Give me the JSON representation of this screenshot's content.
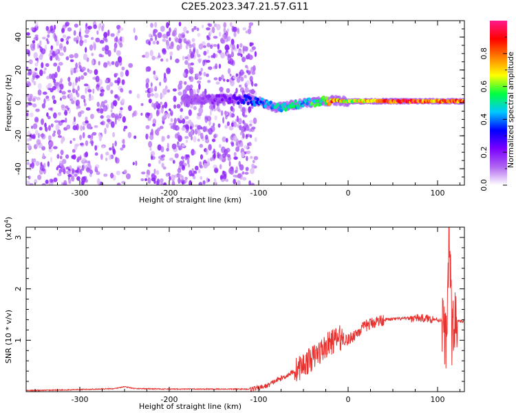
{
  "page": {
    "title": "C2E5.2023.347.21.57.G11"
  },
  "colors": {
    "snr_line": "#e8322f",
    "spectrogram_palette": [
      "#ffffff",
      "#b066f0",
      "#7a00ff",
      "#0000ff",
      "#00c8ff",
      "#00ff40",
      "#ffff00",
      "#ff8000",
      "#ff0000",
      "#ff1a8c"
    ]
  },
  "chart_data": [
    {
      "id": "spectrogram",
      "type": "heatmap",
      "title": "",
      "xlabel": "Height of straight line (km)",
      "ylabel": "Frequency (Hz)",
      "xlim": [
        -360,
        130
      ],
      "ylim": [
        -50,
        50
      ],
      "xticks": [
        -300,
        -200,
        -100,
        0,
        100
      ],
      "xtick_labels": [
        "-300",
        "-200",
        "-100",
        "0",
        "100"
      ],
      "yticks": [
        -40,
        -20,
        0,
        20,
        40
      ],
      "ytick_labels": [
        "-40",
        "-20",
        "0",
        "20",
        "40"
      ],
      "colorbar": {
        "label": "Normalized spectral amplitude",
        "range": [
          0,
          1
        ],
        "ticks": [
          0.0,
          0.2,
          0.4,
          0.6,
          0.8
        ],
        "tick_labels": [
          "0.0",
          "0.2",
          "0.4",
          "0.6",
          "0.8"
        ]
      },
      "noise_region": {
        "x_range": [
          -360,
          -103
        ],
        "f_range": [
          -50,
          48
        ],
        "typical_amplitude": 0.1
      },
      "signal_ridge": [
        {
          "x": -185,
          "f": 2.5,
          "amplitude": 0.12
        },
        {
          "x": -160,
          "f": 2.0,
          "amplitude": 0.15
        },
        {
          "x": -130,
          "f": 2.5,
          "amplitude": 0.22
        },
        {
          "x": -110,
          "f": 2.0,
          "amplitude": 0.35
        },
        {
          "x": -95,
          "f": 0.0,
          "amplitude": 0.4
        },
        {
          "x": -80,
          "f": -3.0,
          "amplitude": 0.45
        },
        {
          "x": -65,
          "f": -1.5,
          "amplitude": 0.5
        },
        {
          "x": -50,
          "f": 0.0,
          "amplitude": 0.45
        },
        {
          "x": -30,
          "f": 1.0,
          "amplitude": 0.6
        },
        {
          "x": -15,
          "f": 1.5,
          "amplitude": 0.85
        },
        {
          "x": 0,
          "f": 1.0,
          "amplitude": 0.6
        },
        {
          "x": 20,
          "f": 1.0,
          "amplitude": 0.75
        },
        {
          "x": 45,
          "f": 1.0,
          "amplitude": 0.85
        },
        {
          "x": 70,
          "f": 1.0,
          "amplitude": 0.9
        },
        {
          "x": 95,
          "f": 1.0,
          "amplitude": 0.75
        },
        {
          "x": 115,
          "f": 1.0,
          "amplitude": 0.85
        },
        {
          "x": 130,
          "f": 1.0,
          "amplitude": 0.8
        }
      ]
    },
    {
      "id": "snr",
      "type": "line",
      "title": "",
      "xlabel": "Height of straight line (km)",
      "ylabel": "SNR (10 * v/v)",
      "y_multiplier_label": "(x10",
      "y_multiplier_exponent": "4",
      "xlim": [
        -360,
        130
      ],
      "ylim": [
        0,
        3.2
      ],
      "xticks": [
        -300,
        -200,
        -100,
        0,
        100
      ],
      "xtick_labels": [
        "-300",
        "-200",
        "-100",
        "0",
        "100"
      ],
      "yticks": [
        1,
        2,
        3
      ],
      "ytick_labels": [
        "1",
        "2",
        "3"
      ],
      "series": [
        {
          "color": "#e8322f",
          "x": [
            -360,
            -300,
            -260,
            -250,
            -240,
            -200,
            -150,
            -110,
            -100,
            -90,
            -80,
            -70,
            -60,
            -50,
            -40,
            -30,
            -20,
            -10,
            0,
            10,
            20,
            30,
            40,
            60,
            80,
            90,
            100,
            105,
            110,
            113,
            116,
            120,
            125,
            130
          ],
          "y": [
            0.02,
            0.04,
            0.06,
            0.1,
            0.06,
            0.05,
            0.05,
            0.05,
            0.07,
            0.12,
            0.22,
            0.3,
            0.4,
            0.52,
            0.65,
            0.8,
            0.95,
            1.05,
            1.0,
            1.15,
            1.28,
            1.36,
            1.4,
            1.42,
            1.43,
            1.42,
            1.4,
            1.38,
            0.95,
            3.2,
            1.1,
            1.4,
            1.36,
            1.37
          ]
        }
      ]
    }
  ]
}
